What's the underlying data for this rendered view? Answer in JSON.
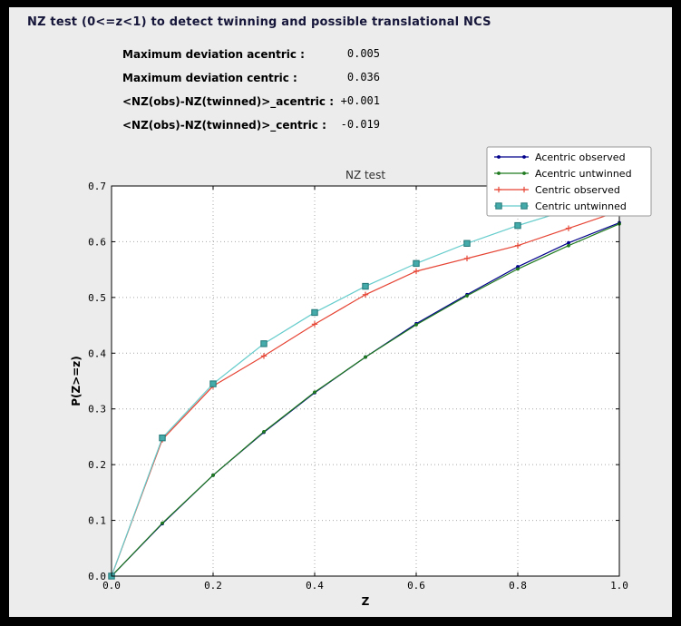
{
  "window": {
    "bg_color": "#000000",
    "panel_color": "#ececec"
  },
  "header": {
    "title": "NZ test (0<=z<1) to detect twinning and possible translational NCS"
  },
  "stats": {
    "rows": [
      {
        "label": "Maximum deviation acentric :",
        "value": "0.005"
      },
      {
        "label": "Maximum deviation centric :",
        "value": "0.036"
      },
      {
        "label": "<NZ(obs)-NZ(twinned)>_acentric :",
        "value": "+0.001"
      },
      {
        "label": "<NZ(obs)-NZ(twinned)>_centric :",
        "value": "-0.019"
      }
    ]
  },
  "chart_data": {
    "type": "line",
    "title": "NZ test",
    "xlabel": "Z",
    "ylabel": "P(Z>=z)",
    "xlim": [
      0.0,
      1.0
    ],
    "ylim": [
      0.0,
      0.7
    ],
    "xticks": [
      0.0,
      0.2,
      0.4,
      0.6,
      0.8,
      1.0
    ],
    "yticks": [
      0.0,
      0.1,
      0.2,
      0.3,
      0.4,
      0.5,
      0.6,
      0.7
    ],
    "grid": true,
    "legend_position": "upper-right",
    "x": [
      0.0,
      0.1,
      0.2,
      0.3,
      0.4,
      0.5,
      0.6,
      0.7,
      0.8,
      0.9,
      1.0
    ],
    "series": [
      {
        "name": "Acentric observed",
        "color": "#00008b",
        "marker": "dot",
        "values": [
          0.0,
          0.094,
          0.181,
          0.258,
          0.329,
          0.393,
          0.453,
          0.505,
          0.555,
          0.598,
          0.634
        ]
      },
      {
        "name": "Acentric untwinned",
        "color": "#1f7a1f",
        "marker": "dot",
        "values": [
          0.0,
          0.095,
          0.181,
          0.259,
          0.33,
          0.393,
          0.451,
          0.503,
          0.551,
          0.593,
          0.632
        ]
      },
      {
        "name": "Centric observed",
        "color": "#e64535",
        "marker": "plus",
        "values": [
          0.0,
          0.245,
          0.341,
          0.395,
          0.452,
          0.505,
          0.547,
          0.57,
          0.593,
          0.624,
          0.655
        ]
      },
      {
        "name": "Centric untwinned",
        "color": "#66cccc",
        "marker": "square",
        "marker_fill": "#44aaaa",
        "marker_edge": "#227777",
        "values": [
          0.0,
          0.248,
          0.345,
          0.417,
          0.473,
          0.52,
          0.561,
          0.597,
          0.629,
          0.657,
          0.683
        ]
      }
    ],
    "colors": {
      "grid": "#a9a9a9",
      "frame": "#000000",
      "plot_bg": "#ffffff",
      "legend_border": "#999999"
    }
  }
}
